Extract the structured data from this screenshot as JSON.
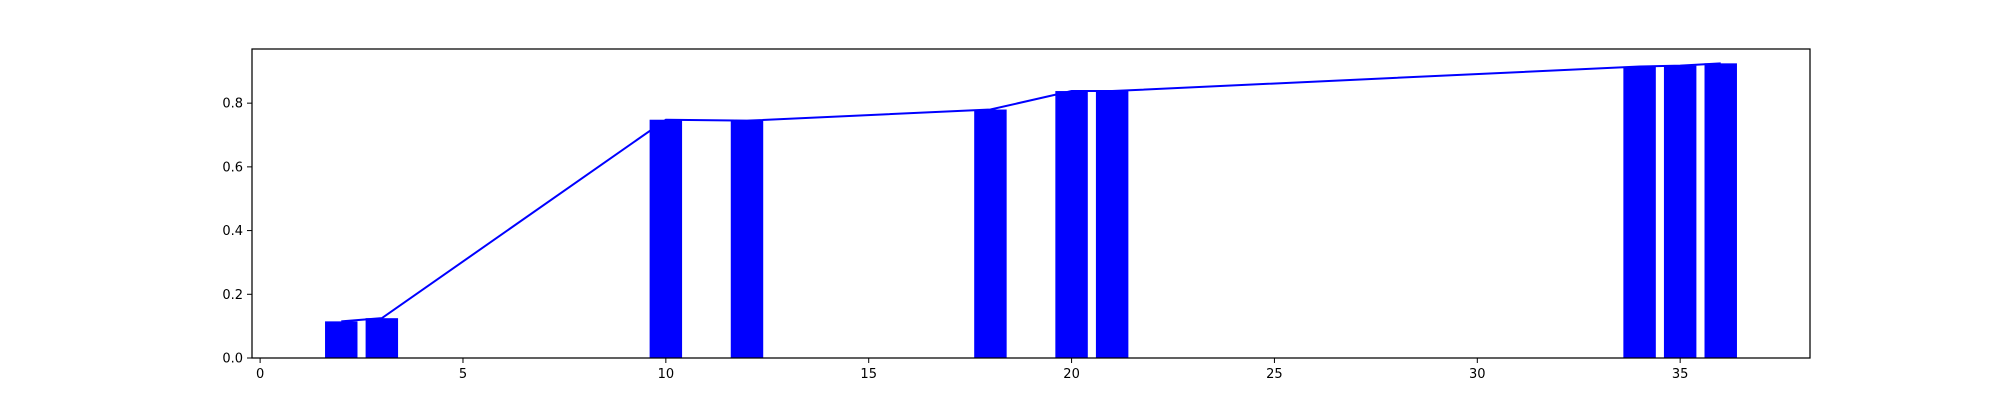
{
  "chart_data": {
    "type": "bar",
    "x": [
      2,
      3,
      10,
      12,
      18,
      20,
      21,
      34,
      35,
      36
    ],
    "values": [
      0.115,
      0.125,
      0.748,
      0.745,
      0.78,
      0.838,
      0.838,
      0.915,
      0.918,
      0.925
    ],
    "line": {
      "x": [
        2,
        3,
        10,
        12,
        18,
        20,
        21,
        34,
        35,
        36
      ],
      "y": [
        0.115,
        0.125,
        0.748,
        0.745,
        0.78,
        0.838,
        0.838,
        0.915,
        0.918,
        0.925
      ]
    },
    "bar_width_data_units": 0.8,
    "xlim": [
      -0.2,
      38.2
    ],
    "ylim": [
      0,
      0.97
    ],
    "xticks": [
      0,
      5,
      10,
      15,
      20,
      25,
      30,
      35
    ],
    "yticks": [
      0.0,
      0.2,
      0.4,
      0.6,
      0.8
    ],
    "xtick_labels": [
      "0",
      "5",
      "10",
      "15",
      "20",
      "25",
      "30",
      "35"
    ],
    "ytick_labels": [
      "0.0",
      "0.2",
      "0.4",
      "0.6",
      "0.8"
    ],
    "bar_color": "#0000ff",
    "line_color": "#0000ff",
    "grid": false,
    "title": "",
    "xlabel": "",
    "ylabel": ""
  }
}
